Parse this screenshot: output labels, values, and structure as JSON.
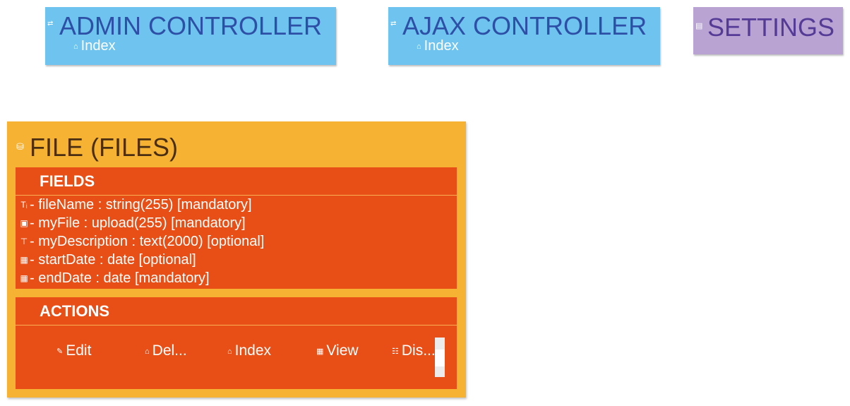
{
  "controllers": [
    {
      "title": "ADMIN CONTROLLER",
      "icon": "swap-arrows-icon",
      "icon_glyph": "⇄",
      "action_label": "Index",
      "action_icon": "home-icon",
      "action_glyph": "⌂"
    },
    {
      "title": "AJAX CONTROLLER",
      "icon": "swap-arrows-icon",
      "icon_glyph": "⇄",
      "action_label": "Index",
      "action_icon": "home-icon",
      "action_glyph": "⌂"
    }
  ],
  "settings": {
    "title": "SETTINGS",
    "icon": "settings-list-icon",
    "icon_glyph": "▤"
  },
  "entity": {
    "title": "FILE (FILES)",
    "icon": "database-icon",
    "icon_glyph": "⛁",
    "fields_header": "FIELDS",
    "fields": [
      {
        "icon": "text-type-icon",
        "glyph": "Tᵢ",
        "text": "- fileName : string(255) [mandatory]"
      },
      {
        "icon": "image-upload-icon",
        "glyph": "▣",
        "text": "- myFile : upload(255) [mandatory]"
      },
      {
        "icon": "textarea-icon",
        "glyph": "⊤",
        "text": "- myDescription : text(2000) [optional]"
      },
      {
        "icon": "calendar-icon",
        "glyph": "▦",
        "text": "- startDate : date [optional]"
      },
      {
        "icon": "calendar-icon",
        "glyph": "▦",
        "text": "- endDate : date [mandatory]"
      }
    ],
    "actions_header": "ACTIONS",
    "actions": [
      {
        "icon": "pencil-icon",
        "glyph": "✎",
        "label": "Edit"
      },
      {
        "icon": "trash-icon",
        "glyph": "⌂",
        "label": "Del..."
      },
      {
        "icon": "home-icon",
        "glyph": "⌂",
        "label": "Index"
      },
      {
        "icon": "view-grid-icon",
        "glyph": "▦",
        "label": "View"
      },
      {
        "icon": "display-list-icon",
        "glyph": "☷",
        "label": "Dis..."
      }
    ]
  }
}
